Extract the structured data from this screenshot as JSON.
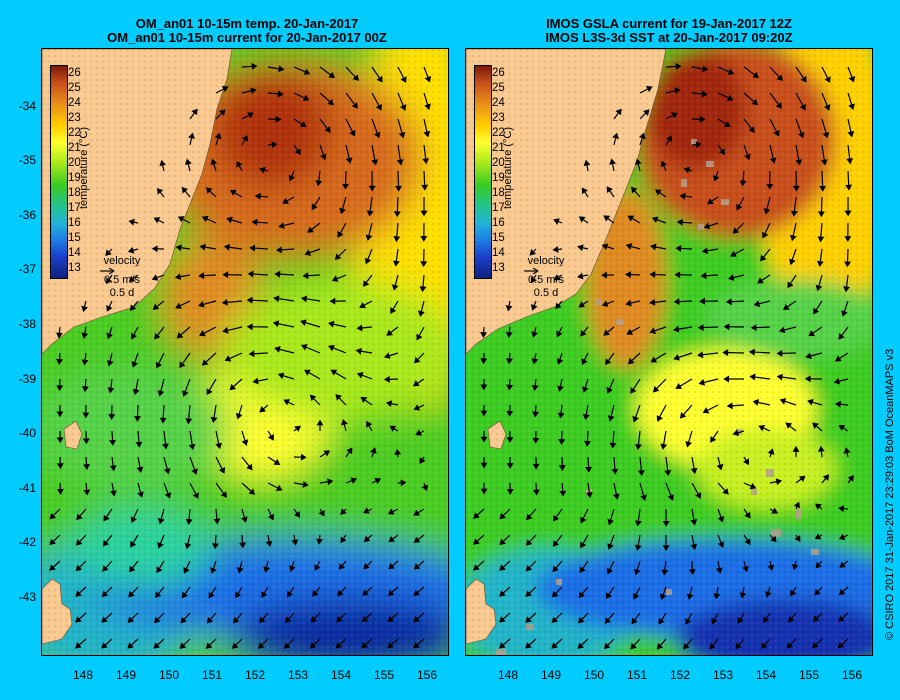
{
  "left_panel": {
    "title_line1": "OM_an01 10-15m temp. 20-Jan-2017",
    "title_line2": "OM_an01 10-15m current for 20-Jan-2017 00Z"
  },
  "right_panel": {
    "title_line1": "IMOS GSLA current for 19-Jan-2017 12Z",
    "title_line2": "IMOS L3S-3d SST at 20-Jan-2017 09:20Z"
  },
  "colorbar": {
    "title": "temperature (°C)",
    "ticks": [
      "26",
      "25",
      "24",
      "23",
      "22",
      "21",
      "20",
      "19",
      "18",
      "17",
      "16",
      "15",
      "14",
      "13"
    ]
  },
  "velocity_legend": {
    "label": "velocity",
    "speed": "0.5 m/s",
    "duration": "0.5 d"
  },
  "latitude_ticks": [
    "-34",
    "-35",
    "-36",
    "-37",
    "-38",
    "-39",
    "-40",
    "-41",
    "-42",
    "-43"
  ],
  "longitude_ticks": [
    "148",
    "149",
    "150",
    "151",
    "152",
    "153",
    "154",
    "155",
    "156"
  ],
  "credit": "© CSIRO 2017   31-Jan-2017 23:29:03 BoM OceanMAPS v3",
  "colors": {
    "background": "#00ccff",
    "land": "#f9c98f",
    "warm": "#c8501a",
    "cool": "#1a60e0",
    "cloud": "#b4a08c"
  }
}
